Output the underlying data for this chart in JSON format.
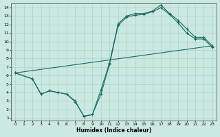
{
  "xlabel": "Humidex (Indice chaleur)",
  "bg_color": "#cce8e2",
  "grid_color": "#aad4cc",
  "line_color": "#1a6b5a",
  "xlim": [
    -0.5,
    23.5
  ],
  "ylim": [
    0.7,
    14.5
  ],
  "xticks": [
    0,
    1,
    2,
    3,
    4,
    5,
    6,
    7,
    8,
    9,
    10,
    11,
    12,
    13,
    14,
    15,
    16,
    17,
    18,
    19,
    20,
    21,
    22,
    23
  ],
  "yticks": [
    1,
    2,
    3,
    4,
    5,
    6,
    7,
    8,
    9,
    10,
    11,
    12,
    13,
    14
  ],
  "line1_x": [
    0,
    2,
    3,
    4,
    5,
    6,
    7,
    8,
    9,
    10,
    11,
    12,
    13,
    14,
    15,
    16,
    17,
    18,
    19,
    20,
    21,
    22,
    23
  ],
  "line1_y": [
    6.3,
    5.6,
    3.8,
    4.2,
    4.0,
    3.8,
    3.0,
    1.2,
    1.4,
    4.3,
    7.5,
    12.1,
    13.0,
    13.3,
    13.3,
    13.6,
    14.3,
    13.3,
    12.5,
    11.5,
    10.5,
    10.5,
    9.5
  ],
  "line2_x": [
    0,
    2,
    3,
    4,
    5,
    6,
    7,
    8,
    9,
    10,
    11,
    12,
    13,
    14,
    15,
    16,
    17,
    18,
    19,
    20,
    21,
    22,
    23
  ],
  "line2_y": [
    6.3,
    5.6,
    3.8,
    4.2,
    4.0,
    3.8,
    2.9,
    1.2,
    1.4,
    3.8,
    7.3,
    11.9,
    12.9,
    13.1,
    13.2,
    13.5,
    14.0,
    13.2,
    12.2,
    11.0,
    10.3,
    10.3,
    9.3
  ],
  "line3_x": [
    0,
    23
  ],
  "line3_y": [
    6.3,
    9.5
  ]
}
